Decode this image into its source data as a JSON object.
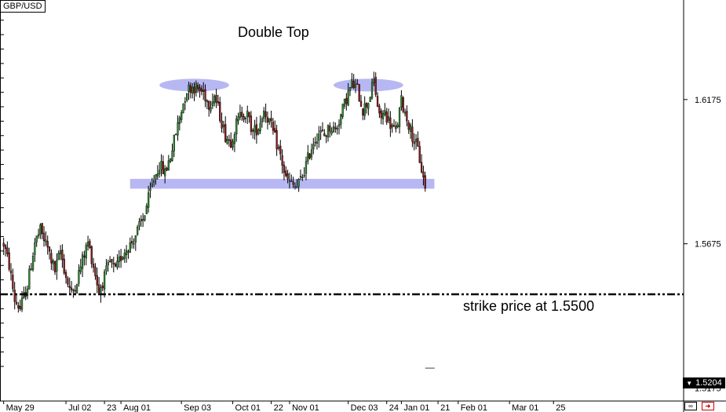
{
  "header": {
    "symbol": "GBP/USD"
  },
  "annotations": {
    "title": "Double Top",
    "strike_label": "strike price at 1.5500"
  },
  "price_tag": {
    "value": "1.5204",
    "arrow_icon": "triangle-down-icon"
  },
  "colors": {
    "bull_candle": "#2e8b2e",
    "bear_candle": "#8b1a1a",
    "highlight": "#9999ee",
    "strike_line": "#000000"
  },
  "chart_data": {
    "type": "candlestick",
    "title": "Double Top",
    "y_ticks": [
      1.6175,
      1.5675,
      1.5175
    ],
    "y_tick_labels": [
      "1.6175",
      "1.5675",
      "1.5175"
    ],
    "ylim": [
      1.513,
      1.652
    ],
    "x_ticks": [
      {
        "label": "May 29",
        "day": 0
      },
      {
        "label": "Jul 02",
        "day": 34
      },
      {
        "label": "23",
        "day": 55
      },
      {
        "label": "Aug 01",
        "day": 64
      },
      {
        "label": "Sep 03",
        "day": 97
      },
      {
        "label": "Oct 01",
        "day": 125
      },
      {
        "label": "22",
        "day": 146
      },
      {
        "label": "Nov 01",
        "day": 156
      },
      {
        "label": "Dec 03",
        "day": 188
      },
      {
        "label": "24",
        "day": 209
      },
      {
        "label": "Jan 01",
        "day": 217
      },
      {
        "label": "21",
        "day": 237
      },
      {
        "label": "Feb 01",
        "day": 248
      },
      {
        "label": "Mar 01",
        "day": 276
      },
      {
        "label": "25",
        "day": 300
      }
    ],
    "xlim": [
      -2,
      371
    ],
    "last_price": 1.5204,
    "strike": 1.55,
    "resistance_zones": [
      {
        "day_center": 104,
        "price": 1.6225,
        "day_halfwidth": 19,
        "price_halfheight": 0.0022
      },
      {
        "day_center": 199,
        "price": 1.6225,
        "day_halfwidth": 19,
        "price_halfheight": 0.0022
      }
    ],
    "support_zone": {
      "day_start": 69,
      "day_end": 235,
      "price_top": 1.59,
      "price_bottom": 1.5866
    },
    "keypoints": [
      [
        0,
        1.5675
      ],
      [
        3,
        1.56
      ],
      [
        6,
        1.548
      ],
      [
        9,
        1.545
      ],
      [
        13,
        1.553
      ],
      [
        17,
        1.568
      ],
      [
        20,
        1.572
      ],
      [
        24,
        1.566
      ],
      [
        28,
        1.558
      ],
      [
        31,
        1.565
      ],
      [
        34,
        1.556
      ],
      [
        37,
        1.55
      ],
      [
        40,
        1.555
      ],
      [
        43,
        1.562
      ],
      [
        46,
        1.568
      ],
      [
        49,
        1.56
      ],
      [
        52,
        1.551
      ],
      [
        55,
        1.556
      ],
      [
        58,
        1.561
      ],
      [
        61,
        1.558
      ],
      [
        64,
        1.563
      ],
      [
        67,
        1.566
      ],
      [
        70,
        1.568
      ],
      [
        73,
        1.572
      ],
      [
        76,
        1.576
      ],
      [
        79,
        1.583
      ],
      [
        82,
        1.59
      ],
      [
        85,
        1.595
      ],
      [
        88,
        1.592
      ],
      [
        91,
        1.598
      ],
      [
        94,
        1.606
      ],
      [
        97,
        1.614
      ],
      [
        100,
        1.621
      ],
      [
        103,
        1.622
      ],
      [
        106,
        1.621
      ],
      [
        109,
        1.62
      ],
      [
        112,
        1.616
      ],
      [
        115,
        1.619
      ],
      [
        118,
        1.612
      ],
      [
        121,
        1.605
      ],
      [
        124,
        1.603
      ],
      [
        127,
        1.609
      ],
      [
        130,
        1.613
      ],
      [
        133,
        1.612
      ],
      [
        136,
        1.606
      ],
      [
        139,
        1.608
      ],
      [
        142,
        1.614
      ],
      [
        145,
        1.61
      ],
      [
        148,
        1.604
      ],
      [
        151,
        1.598
      ],
      [
        154,
        1.59
      ],
      [
        157,
        1.588
      ],
      [
        160,
        1.587
      ],
      [
        163,
        1.591
      ],
      [
        166,
        1.597
      ],
      [
        169,
        1.603
      ],
      [
        172,
        1.606
      ],
      [
        175,
        1.605
      ],
      [
        178,
        1.608
      ],
      [
        181,
        1.607
      ],
      [
        184,
        1.612
      ],
      [
        187,
        1.618
      ],
      [
        190,
        1.623
      ],
      [
        193,
        1.621
      ],
      [
        196,
        1.614
      ],
      [
        199,
        1.617
      ],
      [
        202,
        1.624
      ],
      [
        205,
        1.611
      ],
      [
        208,
        1.613
      ],
      [
        211,
        1.609
      ],
      [
        214,
        1.606
      ],
      [
        217,
        1.617
      ],
      [
        220,
        1.611
      ],
      [
        223,
        1.605
      ],
      [
        226,
        1.6
      ],
      [
        229,
        1.59
      ],
      [
        230,
        1.5875
      ]
    ]
  }
}
